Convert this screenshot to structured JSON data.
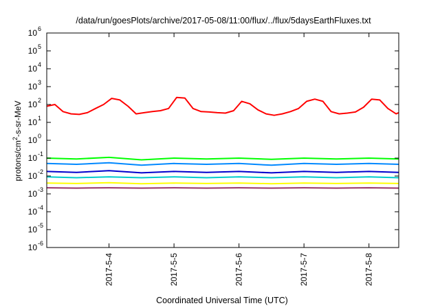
{
  "chart_data": {
    "type": "line",
    "title": "/data/run/goesPlots/archive/2017-05-08/11:00/flux/../flux/5daysEarthFluxes.txt",
    "xlabel": "Coordinated Universal Time (UTC)",
    "ylabel": "protons/cm2-s-sr-MeV",
    "ylabel_parts": {
      "pre": "protons/cm",
      "sup": "2",
      "post": "-s-sr-MeV"
    },
    "y_scale": "log",
    "ylim": [
      1e-06,
      1000000.0
    ],
    "xlim": [
      "2017-05-03T01:00",
      "2017-05-08T11:00"
    ],
    "grid": false,
    "legend": "none",
    "y_ticks": [
      {
        "value": 1000000.0,
        "base": "10",
        "exp": "6"
      },
      {
        "value": 100000.0,
        "base": "10",
        "exp": "5"
      },
      {
        "value": 10000.0,
        "base": "10",
        "exp": "4"
      },
      {
        "value": 1000.0,
        "base": "10",
        "exp": "3"
      },
      {
        "value": 100.0,
        "base": "10",
        "exp": "2"
      },
      {
        "value": 10.0,
        "base": "10",
        "exp": "1"
      },
      {
        "value": 1.0,
        "base": "10",
        "exp": "0"
      },
      {
        "value": 0.1,
        "base": "10",
        "exp": "-1"
      },
      {
        "value": 0.01,
        "base": "10",
        "exp": "-2"
      },
      {
        "value": 0.001,
        "base": "10",
        "exp": "-3"
      },
      {
        "value": 0.0001,
        "base": "10",
        "exp": "-4"
      },
      {
        "value": 1e-05,
        "base": "10",
        "exp": "-5"
      },
      {
        "value": 1e-06,
        "base": "10",
        "exp": "-6"
      }
    ],
    "x_ticks": [
      {
        "value": "2017-05-04T00:00",
        "label": "2017-5-4"
      },
      {
        "value": "2017-05-05T00:00",
        "label": "2017-5-5"
      },
      {
        "value": "2017-05-06T00:00",
        "label": "2017-5-6"
      },
      {
        "value": "2017-05-07T00:00",
        "label": "2017-5-7"
      },
      {
        "value": "2017-05-08T00:00",
        "label": "2017-5-8"
      }
    ],
    "series": [
      {
        "color": "#ff0000",
        "x": [
          "2017-05-03T01:00",
          "2017-05-03T04:00",
          "2017-05-03T07:00",
          "2017-05-03T10:00",
          "2017-05-03T13:00",
          "2017-05-03T16:00",
          "2017-05-03T19:00",
          "2017-05-03T22:00",
          "2017-05-04T01:00",
          "2017-05-04T04:00",
          "2017-05-04T07:00",
          "2017-05-04T10:00",
          "2017-05-04T13:00",
          "2017-05-04T16:00",
          "2017-05-04T19:00",
          "2017-05-04T22:00",
          "2017-05-05T01:00",
          "2017-05-05T04:00",
          "2017-05-05T07:00",
          "2017-05-05T10:00",
          "2017-05-05T13:00",
          "2017-05-05T16:00",
          "2017-05-05T19:00",
          "2017-05-05T22:00",
          "2017-05-06T01:00",
          "2017-05-06T04:00",
          "2017-05-06T07:00",
          "2017-05-06T10:00",
          "2017-05-06T13:00",
          "2017-05-06T16:00",
          "2017-05-06T19:00",
          "2017-05-06T22:00",
          "2017-05-07T01:00",
          "2017-05-07T04:00",
          "2017-05-07T07:00",
          "2017-05-07T10:00",
          "2017-05-07T13:00",
          "2017-05-07T16:00",
          "2017-05-07T19:00",
          "2017-05-07T22:00",
          "2017-05-08T01:00",
          "2017-05-08T04:00",
          "2017-05-08T07:00",
          "2017-05-08T10:00",
          "2017-05-08T11:00"
        ],
        "y": [
          80,
          100,
          40,
          30,
          28,
          35,
          60,
          100,
          220,
          180,
          80,
          30,
          35,
          40,
          45,
          60,
          250,
          230,
          60,
          40,
          38,
          35,
          33,
          45,
          150,
          110,
          50,
          30,
          25,
          30,
          40,
          60,
          150,
          200,
          150,
          40,
          30,
          33,
          38,
          70,
          200,
          180,
          60,
          30,
          35
        ]
      },
      {
        "color": "#00ff00",
        "x": [
          "2017-05-03T01:00",
          "2017-05-03T12:00",
          "2017-05-04T00:00",
          "2017-05-04T12:00",
          "2017-05-05T00:00",
          "2017-05-05T12:00",
          "2017-05-06T00:00",
          "2017-05-06T12:00",
          "2017-05-07T00:00",
          "2017-05-07T12:00",
          "2017-05-08T00:00",
          "2017-05-08T11:00"
        ],
        "y": [
          0.1,
          0.09,
          0.11,
          0.08,
          0.1,
          0.09,
          0.1,
          0.085,
          0.1,
          0.09,
          0.1,
          0.09
        ]
      },
      {
        "color": "#0088ff",
        "x": [
          "2017-05-03T01:00",
          "2017-05-03T12:00",
          "2017-05-04T00:00",
          "2017-05-04T12:00",
          "2017-05-05T00:00",
          "2017-05-05T12:00",
          "2017-05-06T00:00",
          "2017-05-06T12:00",
          "2017-05-07T00:00",
          "2017-05-07T12:00",
          "2017-05-08T00:00",
          "2017-05-08T11:00"
        ],
        "y": [
          0.05,
          0.045,
          0.055,
          0.04,
          0.05,
          0.045,
          0.05,
          0.04,
          0.05,
          0.045,
          0.05,
          0.045
        ]
      },
      {
        "color": "#0000cc",
        "x": [
          "2017-05-03T01:00",
          "2017-05-03T12:00",
          "2017-05-04T00:00",
          "2017-05-04T12:00",
          "2017-05-05T00:00",
          "2017-05-05T12:00",
          "2017-05-06T00:00",
          "2017-05-06T12:00",
          "2017-05-07T00:00",
          "2017-05-07T12:00",
          "2017-05-08T00:00",
          "2017-05-08T11:00"
        ],
        "y": [
          0.018,
          0.016,
          0.02,
          0.015,
          0.018,
          0.016,
          0.018,
          0.015,
          0.018,
          0.016,
          0.018,
          0.016
        ]
      },
      {
        "color": "#00cccc",
        "x": [
          "2017-05-03T01:00",
          "2017-05-03T12:00",
          "2017-05-04T00:00",
          "2017-05-04T12:00",
          "2017-05-05T00:00",
          "2017-05-05T12:00",
          "2017-05-06T00:00",
          "2017-05-06T12:00",
          "2017-05-07T00:00",
          "2017-05-07T12:00",
          "2017-05-08T00:00",
          "2017-05-08T11:00"
        ],
        "y": [
          0.009,
          0.008,
          0.009,
          0.008,
          0.009,
          0.008,
          0.009,
          0.008,
          0.009,
          0.008,
          0.009,
          0.008
        ]
      },
      {
        "color": "#ffff00",
        "x": [
          "2017-05-03T01:00",
          "2017-05-03T12:00",
          "2017-05-04T00:00",
          "2017-05-04T12:00",
          "2017-05-05T00:00",
          "2017-05-05T12:00",
          "2017-05-06T00:00",
          "2017-05-06T12:00",
          "2017-05-07T00:00",
          "2017-05-07T12:00",
          "2017-05-08T00:00",
          "2017-05-08T11:00"
        ],
        "y": [
          0.004,
          0.0038,
          0.0042,
          0.0037,
          0.004,
          0.0038,
          0.004,
          0.0037,
          0.004,
          0.0038,
          0.004,
          0.0038
        ]
      },
      {
        "color": "#993366",
        "x": [
          "2017-05-03T01:00",
          "2017-05-03T12:00",
          "2017-05-04T00:00",
          "2017-05-04T12:00",
          "2017-05-05T00:00",
          "2017-05-05T12:00",
          "2017-05-06T00:00",
          "2017-05-06T12:00",
          "2017-05-07T00:00",
          "2017-05-07T12:00",
          "2017-05-08T00:00",
          "2017-05-08T11:00"
        ],
        "y": [
          0.0022,
          0.0021,
          0.0022,
          0.0021,
          0.0022,
          0.0021,
          0.0022,
          0.0021,
          0.0022,
          0.0021,
          0.0022,
          0.0021
        ]
      }
    ]
  }
}
